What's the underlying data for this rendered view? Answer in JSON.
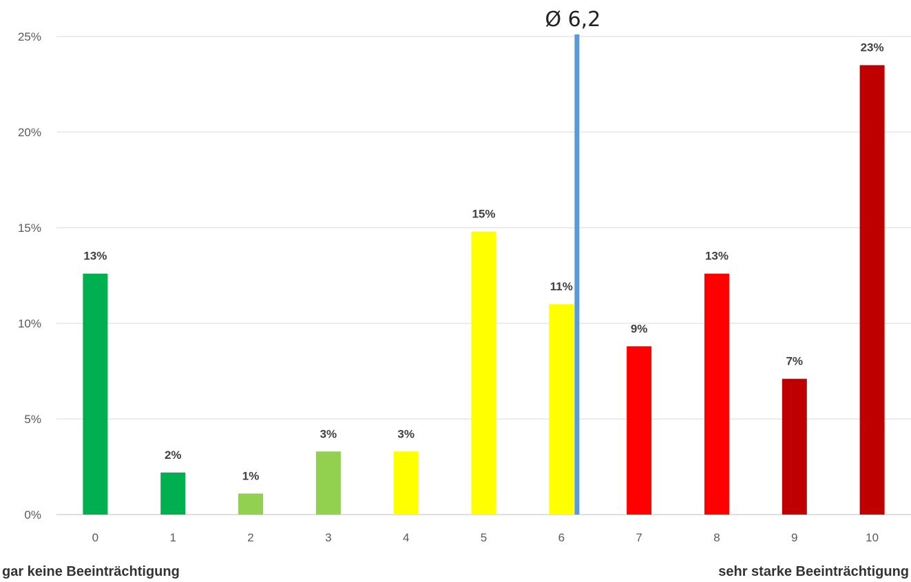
{
  "chart_data": {
    "type": "bar",
    "categories": [
      "0",
      "1",
      "2",
      "3",
      "4",
      "5",
      "6",
      "7",
      "8",
      "9",
      "10"
    ],
    "values": [
      12.6,
      2.2,
      1.1,
      3.3,
      3.3,
      14.8,
      11.0,
      8.8,
      12.6,
      7.1,
      23.5
    ],
    "data_labels": [
      "13%",
      "2%",
      "1%",
      "3%",
      "3%",
      "15%",
      "11%",
      "9%",
      "13%",
      "7%",
      "23%"
    ],
    "colors": [
      "#00b050",
      "#00b050",
      "#92d050",
      "#92d050",
      "#ffff00",
      "#ffff00",
      "#ffff00",
      "#ff0000",
      "#ff0000",
      "#c00000",
      "#c00000"
    ],
    "y_ticks": [
      "0%",
      "5%",
      "10%",
      "15%",
      "20%",
      "25%"
    ],
    "ylim": [
      0,
      25
    ],
    "grid": true,
    "mean": {
      "value": 6.2,
      "label": "Ø 6,2",
      "color": "#5b9bd5"
    },
    "x_left_label": "gar keine Beeinträchtigung",
    "x_right_label": "sehr starke Beeinträchtigung"
  }
}
